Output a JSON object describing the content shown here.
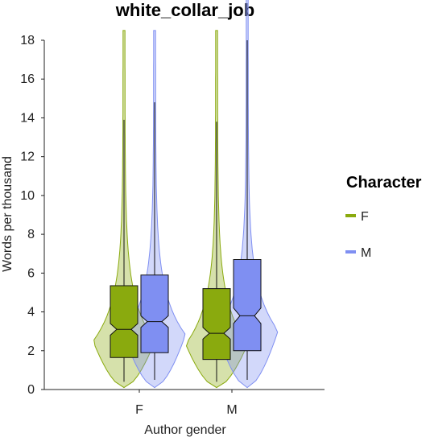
{
  "chart_data": {
    "type": "violin-boxplot",
    "title": "white_collar_job",
    "xlabel": "Author gender",
    "ylabel": "Words per thousand",
    "categories": [
      "F",
      "M"
    ],
    "ylim": [
      0,
      18
    ],
    "yticks": [
      0,
      2,
      4,
      6,
      8,
      10,
      12,
      14,
      16,
      18
    ],
    "legend": {
      "title": "Character",
      "position": "right"
    },
    "grid": false,
    "series": [
      {
        "name": "F",
        "color": "#8aaa0e",
        "boxes": [
          {
            "category": "F",
            "q1": 1.65,
            "median": 3.1,
            "q3": 5.35,
            "notch_low": 2.8,
            "notch_high": 3.4,
            "whisker_low": 0.4,
            "whisker_high": 13.9
          },
          {
            "category": "M",
            "q1": 1.55,
            "median": 2.9,
            "q3": 5.2,
            "notch_low": 2.6,
            "notch_high": 3.2,
            "whisker_low": 0.4,
            "whisker_high": 13.8
          }
        ]
      },
      {
        "name": "M",
        "color": "#7f8ff2",
        "boxes": [
          {
            "category": "F",
            "q1": 1.9,
            "median": 3.5,
            "q3": 5.9,
            "notch_low": 3.2,
            "notch_high": 3.8,
            "whisker_low": 0.5,
            "whisker_high": 14.8
          },
          {
            "category": "M",
            "q1": 2.0,
            "median": 3.8,
            "q3": 6.7,
            "notch_low": 3.4,
            "notch_high": 4.2,
            "whisker_low": 0.5,
            "whisker_high": 18.0
          }
        ]
      }
    ]
  }
}
